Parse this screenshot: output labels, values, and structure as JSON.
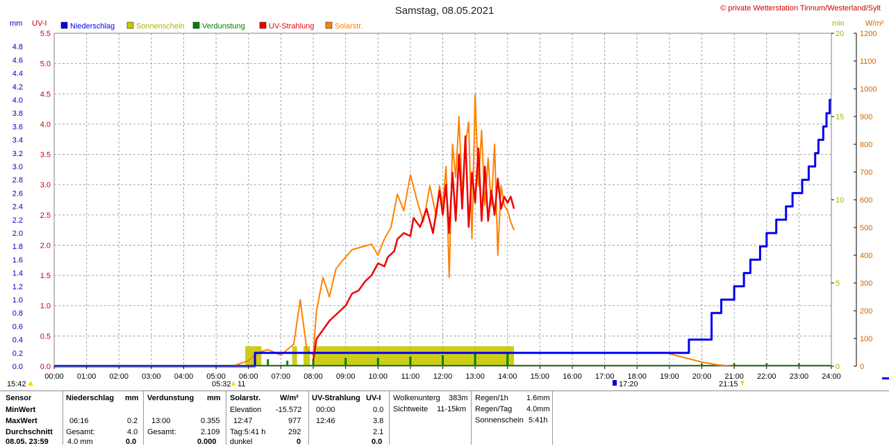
{
  "header": {
    "title": "Samstag, 08.05.2021",
    "copyright": "© private Wetterstation Tinnum/Westerland/Sylt"
  },
  "axis_units": {
    "mm": "mm",
    "uvi": "UV-I",
    "min": "min",
    "wm2": "W/m²"
  },
  "legend": [
    {
      "label": "Niederschlag",
      "color": "#0000ee"
    },
    {
      "label": "Sonnenschein",
      "color": "#c8c800"
    },
    {
      "label": "Verdunstung",
      "color": "#008000"
    },
    {
      "label": "UV-Strahlung",
      "color": "#ee0000"
    },
    {
      "label": "Solarstr.",
      "color": "#ff8000"
    }
  ],
  "colors": {
    "niederschlag": "#0000ee",
    "sonnenschein": "#c8c800",
    "verdunstung": "#008000",
    "uv": "#ee0000",
    "solar": "#ff8000",
    "mm_axis": "#0000cc",
    "uv_axis": "#cc0000",
    "min_axis": "#b0b000",
    "wm2_axis": "#cc6600",
    "grid": "#a0a0a0"
  },
  "markers": {
    "sunrise": "05:32",
    "sunrise_extra": "11",
    "sunset": "21:15",
    "time_now": "15:42",
    "moon": "17:20"
  },
  "chart_data": {
    "type": "line",
    "title": "Samstag, 08.05.2021",
    "x_ticks": [
      "00:00",
      "01:00",
      "02:00",
      "03:00",
      "04:00",
      "05:00",
      "06:00",
      "07:00",
      "08:00",
      "09:00",
      "10:00",
      "11:00",
      "12:00",
      "13:00",
      "14:00",
      "15:00",
      "16:00",
      "17:00",
      "18:00",
      "19:00",
      "20:00",
      "21:00",
      "22:00",
      "23:00",
      "24:00"
    ],
    "xlim_hours": [
      0,
      24
    ],
    "axes": {
      "mm": {
        "ticks": [
          "0.0",
          "0.2",
          "0.4",
          "0.6",
          "0.8",
          "1.0",
          "1.2",
          "1.4",
          "1.6",
          "1.8",
          "2.0",
          "2.2",
          "2.4",
          "2.6",
          "2.8",
          "3.0",
          "3.2",
          "3.4",
          "3.6",
          "3.8",
          "4.0",
          "4.2",
          "4.4",
          "4.6",
          "4.8"
        ],
        "range": [
          0,
          5.0
        ]
      },
      "uvi": {
        "ticks": [
          "0.0",
          "0.5",
          "1.0",
          "1.5",
          "2.0",
          "2.5",
          "3.0",
          "3.5",
          "4.0",
          "4.5",
          "5.0",
          "5.5"
        ],
        "range": [
          0,
          5.5
        ]
      },
      "min": {
        "ticks": [
          "0",
          "5",
          "10",
          "15",
          "20"
        ],
        "range": [
          0,
          20
        ]
      },
      "wm2": {
        "ticks": [
          "0",
          "100",
          "200",
          "300",
          "400",
          "500",
          "600",
          "700",
          "800",
          "900",
          "1000",
          "1100",
          "1200"
        ],
        "range": [
          0,
          1200
        ]
      }
    },
    "grid": true,
    "series": [
      {
        "name": "Niederschlag",
        "axis": "mm",
        "points": [
          [
            0,
            0
          ],
          [
            6.2,
            0
          ],
          [
            6.2,
            0.2
          ],
          [
            14.2,
            0.2
          ],
          [
            19.0,
            0.2
          ],
          [
            19.6,
            0.2
          ],
          [
            19.6,
            0.4
          ],
          [
            20.3,
            0.4
          ],
          [
            20.3,
            0.8
          ],
          [
            20.6,
            0.8
          ],
          [
            20.6,
            1.0
          ],
          [
            21.0,
            1.0
          ],
          [
            21.0,
            1.2
          ],
          [
            21.3,
            1.2
          ],
          [
            21.3,
            1.4
          ],
          [
            21.5,
            1.4
          ],
          [
            21.5,
            1.6
          ],
          [
            21.8,
            1.6
          ],
          [
            21.8,
            1.8
          ],
          [
            22.0,
            1.8
          ],
          [
            22.0,
            2.0
          ],
          [
            22.3,
            2.0
          ],
          [
            22.3,
            2.2
          ],
          [
            22.6,
            2.2
          ],
          [
            22.6,
            2.4
          ],
          [
            22.8,
            2.4
          ],
          [
            22.8,
            2.6
          ],
          [
            23.1,
            2.6
          ],
          [
            23.1,
            2.8
          ],
          [
            23.3,
            2.8
          ],
          [
            23.3,
            3.0
          ],
          [
            23.5,
            3.0
          ],
          [
            23.5,
            3.2
          ],
          [
            23.6,
            3.2
          ],
          [
            23.6,
            3.4
          ],
          [
            23.75,
            3.4
          ],
          [
            23.75,
            3.6
          ],
          [
            23.85,
            3.6
          ],
          [
            23.85,
            3.8
          ],
          [
            23.95,
            3.8
          ],
          [
            23.95,
            4.0
          ],
          [
            24.0,
            4.0
          ]
        ]
      },
      {
        "name": "UV-Strahlung",
        "axis": "uvi",
        "points": [
          [
            8.0,
            0.1
          ],
          [
            8.1,
            0.45
          ],
          [
            8.3,
            0.6
          ],
          [
            8.5,
            0.75
          ],
          [
            8.8,
            0.9
          ],
          [
            9.0,
            1.0
          ],
          [
            9.2,
            1.2
          ],
          [
            9.4,
            1.25
          ],
          [
            9.6,
            1.4
          ],
          [
            9.8,
            1.5
          ],
          [
            10.0,
            1.7
          ],
          [
            10.2,
            1.65
          ],
          [
            10.3,
            1.8
          ],
          [
            10.5,
            1.9
          ],
          [
            10.6,
            2.1
          ],
          [
            10.8,
            2.2
          ],
          [
            11.0,
            2.15
          ],
          [
            11.1,
            2.45
          ],
          [
            11.3,
            2.3
          ],
          [
            11.5,
            2.6
          ],
          [
            11.7,
            2.2
          ],
          [
            11.9,
            2.9
          ],
          [
            12.0,
            2.5
          ],
          [
            12.1,
            3.0
          ],
          [
            12.2,
            2.2
          ],
          [
            12.3,
            3.2
          ],
          [
            12.4,
            2.4
          ],
          [
            12.5,
            3.5
          ],
          [
            12.6,
            2.6
          ],
          [
            12.7,
            3.8
          ],
          [
            12.8,
            2.3
          ],
          [
            12.9,
            3.2
          ],
          [
            13.0,
            2.7
          ],
          [
            13.1,
            3.6
          ],
          [
            13.2,
            2.4
          ],
          [
            13.3,
            3.3
          ],
          [
            13.4,
            2.4
          ],
          [
            13.5,
            2.9
          ],
          [
            13.6,
            2.5
          ],
          [
            13.7,
            3.1
          ],
          [
            13.8,
            2.6
          ],
          [
            13.9,
            2.8
          ],
          [
            14.0,
            2.7
          ],
          [
            14.1,
            2.8
          ],
          [
            14.2,
            2.6
          ]
        ]
      },
      {
        "name": "Solarstr.",
        "axis": "wm2",
        "points": [
          [
            5.5,
            0
          ],
          [
            6.0,
            20
          ],
          [
            6.3,
            50
          ],
          [
            6.6,
            60
          ],
          [
            7.0,
            40
          ],
          [
            7.4,
            80
          ],
          [
            7.6,
            240
          ],
          [
            7.8,
            60
          ],
          [
            8.0,
            40
          ],
          [
            8.1,
            200
          ],
          [
            8.3,
            320
          ],
          [
            8.5,
            250
          ],
          [
            8.7,
            350
          ],
          [
            8.9,
            380
          ],
          [
            9.2,
            420
          ],
          [
            9.5,
            430
          ],
          [
            9.8,
            440
          ],
          [
            10.0,
            400
          ],
          [
            10.2,
            460
          ],
          [
            10.4,
            500
          ],
          [
            10.6,
            620
          ],
          [
            10.8,
            560
          ],
          [
            11.0,
            690
          ],
          [
            11.2,
            600
          ],
          [
            11.4,
            520
          ],
          [
            11.6,
            650
          ],
          [
            11.8,
            540
          ],
          [
            11.9,
            650
          ],
          [
            12.0,
            580
          ],
          [
            12.1,
            720
          ],
          [
            12.2,
            320
          ],
          [
            12.3,
            800
          ],
          [
            12.4,
            680
          ],
          [
            12.5,
            900
          ],
          [
            12.6,
            620
          ],
          [
            12.7,
            800
          ],
          [
            12.8,
            880
          ],
          [
            12.9,
            460
          ],
          [
            13.0,
            980
          ],
          [
            13.1,
            650
          ],
          [
            13.2,
            850
          ],
          [
            13.3,
            580
          ],
          [
            13.4,
            750
          ],
          [
            13.5,
            580
          ],
          [
            13.6,
            800
          ],
          [
            13.7,
            400
          ],
          [
            13.8,
            650
          ],
          [
            13.9,
            580
          ],
          [
            14.0,
            560
          ],
          [
            14.1,
            520
          ],
          [
            14.2,
            490
          ],
          [
            19.0,
            45
          ],
          [
            19.5,
            30
          ],
          [
            20.0,
            15
          ],
          [
            20.5,
            5
          ],
          [
            21.0,
            0
          ]
        ]
      },
      {
        "name": "Sonnenschein",
        "axis": "min",
        "bars": [
          [
            5.9,
            6.4
          ],
          [
            7.35,
            7.5
          ],
          [
            7.7,
            7.9
          ],
          [
            8.0,
            14.2
          ]
        ],
        "value": 1.2
      },
      {
        "name": "Verdunstung",
        "axis": "wm2",
        "spikes": [
          [
            6.6,
            25
          ],
          [
            7.2,
            20
          ],
          [
            8.0,
            25
          ],
          [
            9.0,
            30
          ],
          [
            10.0,
            30
          ],
          [
            11.0,
            35
          ],
          [
            12.0,
            40
          ],
          [
            13.0,
            50
          ],
          [
            14.0,
            45
          ],
          [
            20.0,
            10
          ],
          [
            21.0,
            10
          ],
          [
            22.0,
            10
          ],
          [
            23.0,
            10
          ]
        ]
      }
    ]
  },
  "stats": {
    "rows": [
      "Sensor",
      "MinWert",
      "MaxWert",
      "Durchschnitt",
      "08.05. 23:59"
    ],
    "niederschlag": {
      "header": "Niederschlag",
      "unit": "mm",
      "max_label": "06:16",
      "max_value": "0.2",
      "total_label": "Gesamt:",
      "total_value": "4.0",
      "avg_label": "4.0 mm",
      "avg_value": "0.0"
    },
    "verdunstung": {
      "header": "Verdunstung",
      "unit": "mm",
      "max_label": "13:00",
      "max_value": "0.355",
      "total_label": "Gesamt:",
      "total_value": "2.109",
      "avg_value": "0.000"
    },
    "solar": {
      "header": "Solarstr.",
      "unit": "W/m²",
      "elevation_label": "Elevation",
      "elevation_value": "-15.572",
      "max_label": "12:47",
      "max_value": "977",
      "tag_label": "Tag:5:41 h",
      "tag_value": "292",
      "dunkel_label": "dunkel",
      "dunkel_value": "0"
    },
    "uv": {
      "header": "UV-Strahlung",
      "unit": "UV-I",
      "min_label": "00:00",
      "min_value": "0.0",
      "max_label": "12:46",
      "max_value": "3.8",
      "avg_value": "2.1",
      "last_value": "0.0"
    },
    "wolken": {
      "label1": "Wolkenunterg",
      "value1": "383m",
      "label2": "Sichtweite",
      "value2": "11-15km"
    },
    "regen": {
      "l1": "Regen/1h",
      "v1": "1.6mm",
      "l2": "Regen/Tag",
      "v2": "4.0mm",
      "l3": "Sonnenschein",
      "v3": "5:41h"
    }
  }
}
